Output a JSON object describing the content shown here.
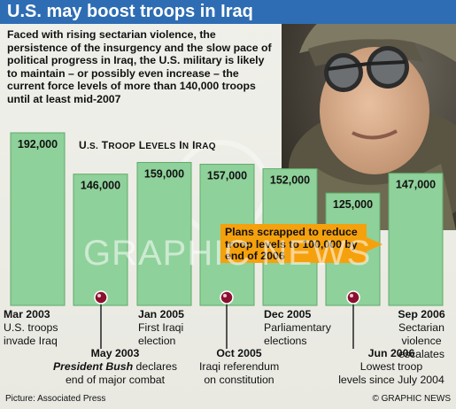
{
  "headline": "U.S. may boost troops in Iraq",
  "intro": "Faced with rising sectarian violence, the persistence of the insurgency and the slow pace of political progress in Iraq, the U.S. military is likely to maintain – or possibly even increase – the current force levels of more than 140,000 troops until at least mid-2007",
  "chart_title_main": "U.S. Troop Levels In Iraq",
  "callout": "Plans scrapped to reduce troop levels to 100,000 by end of 2006",
  "watermark": "GRAPHIC NEWS",
  "credit": "Picture: Associated Press",
  "brand": "© GRAPHIC NEWS",
  "colors": {
    "bar_fill": "#8fd19a",
    "bar_stroke": "#5faa6a",
    "headline_bg": "#2e6db3",
    "callout_bg": "#f5a10d",
    "marker": "#8a1030"
  },
  "icons": [
    "soldier-photo",
    "event-marker-icon"
  ],
  "chart_data": {
    "type": "bar",
    "title": "U.S. Troop Levels In Iraq",
    "categories": [
      "Mar 2003",
      "May 2003",
      "Jan 2005",
      "Oct 2005",
      "Dec 2005",
      "Jun 2006",
      "Sep 2006"
    ],
    "values": [
      192000,
      146000,
      159000,
      157000,
      152000,
      125000,
      147000
    ],
    "value_labels": [
      "192,000",
      "146,000",
      "159,000",
      "157,000",
      "152,000",
      "125,000",
      "147,000"
    ],
    "ylim": [
      0,
      200000
    ],
    "grid": false,
    "legend": "none"
  },
  "events": [
    {
      "date": "Mar 2003",
      "line1": "U.S. troops",
      "line2": "invade Iraq"
    },
    {
      "date": "May 2003",
      "line1": "President Bush declares",
      "line1_em": "President Bush",
      "line2": "end of major combat"
    },
    {
      "date": "Jan 2005",
      "line1": "First Iraqi",
      "line2": "election"
    },
    {
      "date": "Oct 2005",
      "line1": "Iraqi referendum",
      "line2": "on constitution"
    },
    {
      "date": "Dec 2005",
      "line1": "Parliamentary",
      "line2": "elections"
    },
    {
      "date": "Jun 2006",
      "line1": "Lowest troop",
      "line2": "levels since July 2004"
    },
    {
      "date": "Sep 2006",
      "line1": "Sectarian",
      "line2": "violence",
      "line3": "escalates"
    }
  ]
}
